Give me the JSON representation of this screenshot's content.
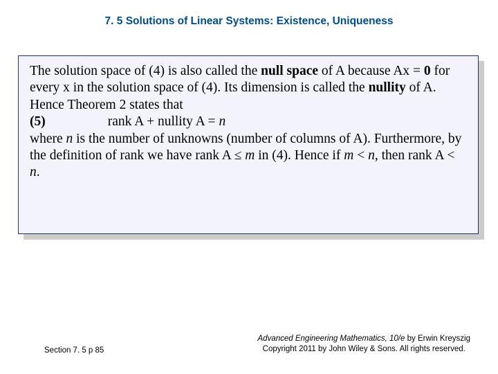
{
  "header": {
    "title": "7. 5 Solutions of Linear Systems: Existence, Uniqueness"
  },
  "body": {
    "t1": "The solution space of (4) is also called the ",
    "t2": "null space",
    "t3": " of A because Ax = ",
    "t4": "0",
    "t5": " for every x in the solution space of (4). Its dimension is called the ",
    "t6": "nullity",
    "t7": " of A. Hence Theorem 2 states that",
    "eq_label": "(5)",
    "eq": "rank A + nullity A = ",
    "eq_n": "n",
    "t8": "where ",
    "t9": "n",
    "t10": " is the number of unknowns (number of columns of A). Furthermore, by the definition of rank we have rank A ≤ ",
    "t11": "m",
    "t12": " in (4). Hence if ",
    "t13": "m",
    "t14": " < ",
    "t15": "n",
    "t16": ", then rank A < ",
    "t17": "n",
    "t18": "."
  },
  "footer": {
    "left": "Section 7. 5  p 85",
    "book": "Advanced Engineering Mathematics, 10/e",
    "author": " by Erwin Kreyszig",
    "copyright": "Copyright 2011 by John Wiley & Sons. All rights reserved."
  },
  "style": {
    "header_color": "#004d8a",
    "box_bg": "#f2f3fb",
    "box_border": "#1f2f5f",
    "shadow": "#cccccc",
    "page_bg": "#ffffff"
  }
}
